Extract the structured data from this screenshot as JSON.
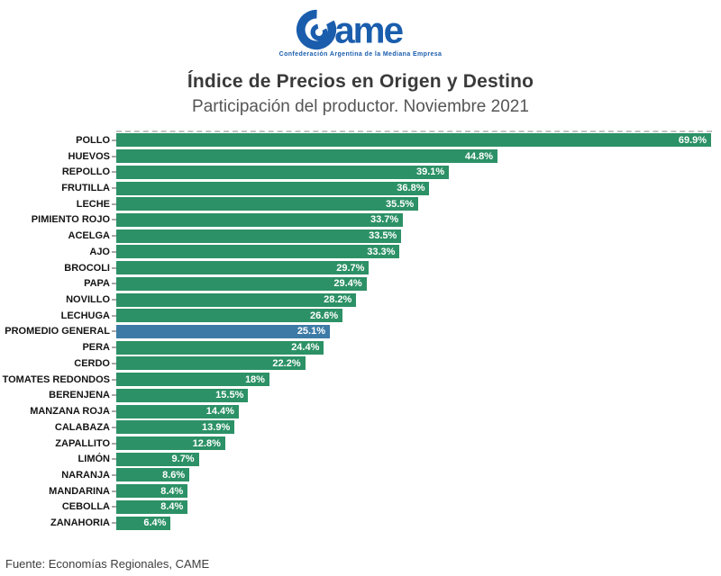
{
  "logo": {
    "text": "ame",
    "tagline": "Confederación Argentina de la Mediana Empresa",
    "color": "#1a5dad"
  },
  "title": "Índice de Precios en Origen y Destino",
  "subtitle": "Participación del productor. Noviembre 2021",
  "source": "Fuente: Economías Regionales, CAME",
  "colors": {
    "bar": "#2c9166",
    "highlight": "#3d7ba6",
    "value_text": "#ffffff",
    "category_text": "#141414"
  },
  "chart_data": {
    "type": "bar",
    "orientation": "horizontal",
    "title": "Índice de Precios en Origen y Destino",
    "subtitle": "Participación del productor. Noviembre 2021",
    "xlabel": "",
    "ylabel": "",
    "xlim": [
      0,
      70
    ],
    "grid": "dashed top boundary only",
    "legend": "none",
    "categories": [
      "POLLO",
      "HUEVOS",
      "REPOLLO",
      "FRUTILLA",
      "LECHE",
      "PIMIENTO ROJO",
      "ACELGA",
      "AJO",
      "BROCOLI",
      "PAPA",
      "NOVILLO",
      "LECHUGA",
      "PROMEDIO GENERAL",
      "PERA",
      "CERDO",
      "TOMATES REDONDOS",
      "BERENJENA",
      "MANZANA ROJA",
      "CALABAZA",
      "ZAPALLITO",
      "LIMÓN",
      "NARANJA",
      "MANDARINA",
      "CEBOLLA",
      "ZANAHORIA"
    ],
    "values": [
      69.9,
      44.8,
      39.1,
      36.8,
      35.5,
      33.7,
      33.5,
      33.3,
      29.7,
      29.4,
      28.2,
      26.6,
      25.1,
      24.4,
      22.2,
      18,
      15.5,
      14.4,
      13.9,
      12.8,
      9.7,
      8.6,
      8.4,
      8.4,
      6.4
    ],
    "value_labels": [
      "69.9%",
      "44.8%",
      "39.1%",
      "36.8%",
      "35.5%",
      "33.7%",
      "33.5%",
      "33.3%",
      "29.7%",
      "29.4%",
      "28.2%",
      "26.6%",
      "25.1%",
      "24.4%",
      "22.2%",
      "18%",
      "15.5%",
      "14.4%",
      "13.9%",
      "12.8%",
      "9.7%",
      "8.6%",
      "8.4%",
      "8.4%",
      "6.4%"
    ],
    "highlight_category": "PROMEDIO GENERAL"
  }
}
